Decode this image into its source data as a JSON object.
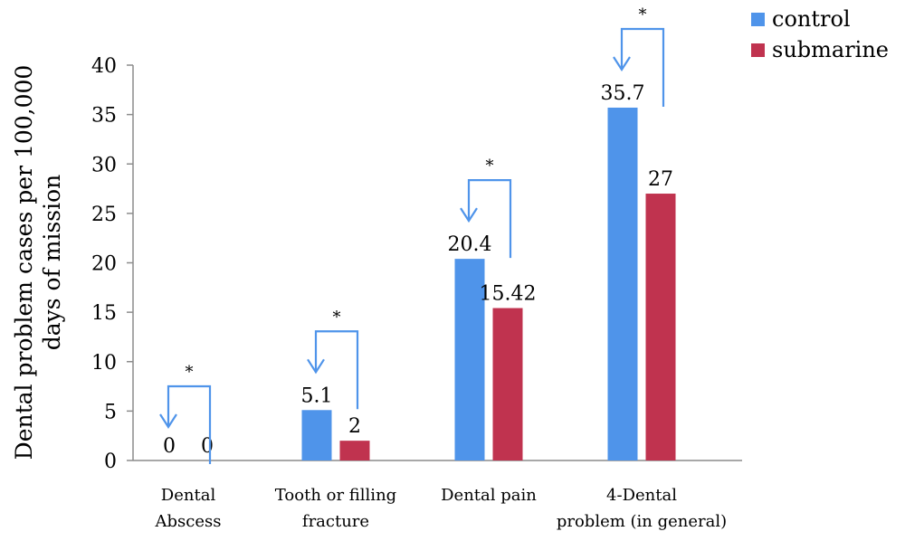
{
  "chart_data": {
    "type": "bar",
    "categories": [
      [
        "Dental",
        "Abscess"
      ],
      [
        "Tooth or filling",
        "fracture"
      ],
      [
        "Dental pain"
      ],
      [
        "4-Dental",
        "problem (in general)"
      ]
    ],
    "series": [
      {
        "name": "control",
        "color": "#4F94EA",
        "values": [
          0,
          5.1,
          20.4,
          35.7
        ],
        "labels": [
          "0",
          "5.1",
          "20.4",
          "35.7"
        ]
      },
      {
        "name": "submarine",
        "color": "#C0334F",
        "values": [
          0,
          2,
          15.42,
          27
        ],
        "labels": [
          "0",
          "2",
          "15.42",
          "27"
        ]
      }
    ],
    "ylabel": [
      "Dental problem cases per 100,000",
      "days of mission"
    ],
    "xlabel": "",
    "ylim": [
      0,
      40
    ],
    "yticks": [
      0,
      5,
      10,
      15,
      20,
      25,
      30,
      35,
      40
    ],
    "grid": false,
    "legend": "top-right",
    "annotations": [
      {
        "category": 0,
        "text": "*"
      },
      {
        "category": 1,
        "text": "*"
      },
      {
        "category": 2,
        "text": "*"
      },
      {
        "category": 3,
        "text": "*"
      }
    ],
    "annotation_color": "#4F94EA"
  }
}
